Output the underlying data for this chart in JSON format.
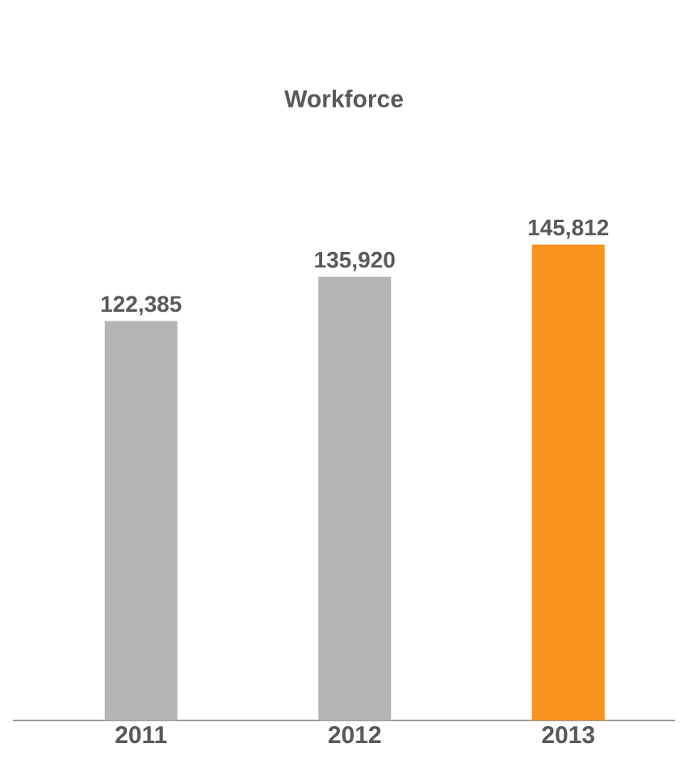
{
  "chart_data": {
    "type": "bar",
    "title": "Workforce",
    "categories": [
      "2011",
      "2012",
      "2013"
    ],
    "values": [
      122385,
      135920,
      145812
    ],
    "value_labels": [
      "122,385",
      "135,920",
      "145,812"
    ],
    "colors": [
      "#b5b5b7",
      "#b5b5b7",
      "#f7931e"
    ]
  }
}
